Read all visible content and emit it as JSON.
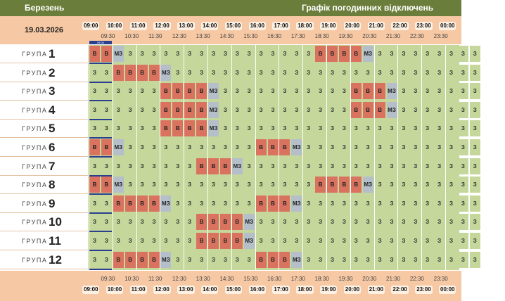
{
  "header": {
    "month": "Березень",
    "title": "Графік погодинних відключень"
  },
  "date": "19.03.2026",
  "group_word": "ГРУПА",
  "current_marker": "09:00",
  "hours": [
    "09:00",
    "10:00",
    "11:00",
    "12:00",
    "13:00",
    "14:00",
    "15:00",
    "16:00",
    "17:00",
    "18:00",
    "19:00",
    "20:00",
    "21:00",
    "22:00",
    "23:00",
    "00:00"
  ],
  "halves": [
    "09:30",
    "10:30",
    "11:30",
    "12:30",
    "13:30",
    "14:30",
    "15:30",
    "16:30",
    "17:30",
    "18:30",
    "19:30",
    "20:30",
    "21:30",
    "22:30",
    "23:30"
  ],
  "legend": {
    "on": "З",
    "off": "В",
    "maybe": "МЗ"
  },
  "groups": [
    {
      "num": "1",
      "slots": "OOMCCCCCCCCCCCCCCCCOOOOMCCCCCCCCC"
    },
    {
      "num": "2",
      "slots": "CCOOOOMCCCCCCCCCCCCCCCCCCCCCCCCCC"
    },
    {
      "num": "3",
      "slots": "CCCCCCOOOOMCCCCCCCCCCCOOOMCCCCCCC"
    },
    {
      "num": "4",
      "slots": "CCCCCCOOOOMCCCCCCCCCCCOOOMCCCCCCC"
    },
    {
      "num": "5",
      "slots": "CCCCCCOOOOMCCCCCCCCCCCCCCCCCCCCCC"
    },
    {
      "num": "6",
      "slots": "OOMCCCCCCCCCCCOOOMCCCCCCCCCCCCCCC"
    },
    {
      "num": "7",
      "slots": "CCCCCCCCCOOOMCCCCCCCCCCCCCCCCCCCC"
    },
    {
      "num": "8",
      "slots": "OOMCCCCCCCCCCCCCCCCOOOOMCCCCCCCCC"
    },
    {
      "num": "9",
      "slots": "CCOOOOMCCCCCCCOOOMCCCCCCCCCCCCCCC"
    },
    {
      "num": "10",
      "slots": "CCCCCCCCCOOOOMCCCCCCCCCCCCCCCCCCC"
    },
    {
      "num": "11",
      "slots": "CCCCCCCCCOOOOMCCCCCCCCCCCCCCCCCCC"
    },
    {
      "num": "12",
      "slots": "CCOOOOMCCCCCCCOOOMCCCCCCCCCCCCCCC"
    }
  ]
}
